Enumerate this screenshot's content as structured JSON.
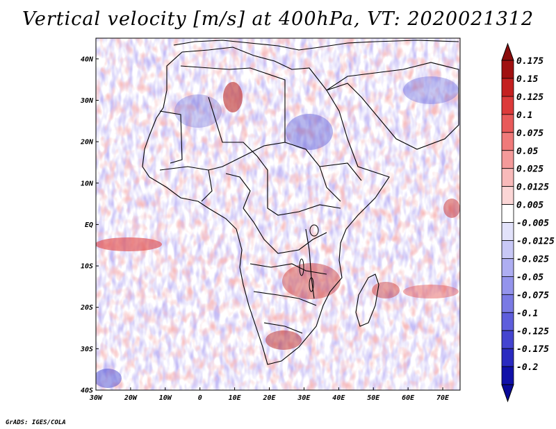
{
  "title": "Vertical velocity [m/s] at 400hPa, VT: 2020021312",
  "map": {
    "lon_range": [
      -30,
      75
    ],
    "lat_range": [
      -40,
      45
    ],
    "lat_ticks": [
      {
        "value": 40,
        "label": "40N"
      },
      {
        "value": 30,
        "label": "30N"
      },
      {
        "value": 20,
        "label": "20N"
      },
      {
        "value": 10,
        "label": "10N"
      },
      {
        "value": 0,
        "label": "EQ"
      },
      {
        "value": -10,
        "label": "10S"
      },
      {
        "value": -20,
        "label": "20S"
      },
      {
        "value": -30,
        "label": "30S"
      },
      {
        "value": -40,
        "label": "40S"
      }
    ],
    "lon_ticks": [
      {
        "value": -30,
        "label": "30W"
      },
      {
        "value": -20,
        "label": "20W"
      },
      {
        "value": -10,
        "label": "10W"
      },
      {
        "value": 0,
        "label": "0"
      },
      {
        "value": 10,
        "label": "10E"
      },
      {
        "value": 20,
        "label": "20E"
      },
      {
        "value": 30,
        "label": "30E"
      },
      {
        "value": 40,
        "label": "40E"
      },
      {
        "value": 50,
        "label": "50E"
      },
      {
        "value": 60,
        "label": "60E"
      },
      {
        "value": 70,
        "label": "70E"
      }
    ]
  },
  "colorbar": {
    "levels": [
      {
        "label": "0.175",
        "color": "#a01010"
      },
      {
        "label": "0.15",
        "color": "#c42020"
      },
      {
        "label": "0.125",
        "color": "#dc3a3a"
      },
      {
        "label": "0.1",
        "color": "#e85a5a"
      },
      {
        "label": "0.075",
        "color": "#f07a7a"
      },
      {
        "label": "0.05",
        "color": "#f49a9a"
      },
      {
        "label": "0.025",
        "color": "#f8baba"
      },
      {
        "label": "0.0125",
        "color": "#fbd6d6"
      },
      {
        "label": "0.005",
        "color": "#ffffff"
      },
      {
        "label": "-0.005",
        "color": "#e2e2fa"
      },
      {
        "label": "-0.0125",
        "color": "#c8c8f6"
      },
      {
        "label": "-0.025",
        "color": "#aeaef2"
      },
      {
        "label": "-0.05",
        "color": "#9494ec"
      },
      {
        "label": "-0.075",
        "color": "#7a7ae4"
      },
      {
        "label": "-0.1",
        "color": "#5e5edc"
      },
      {
        "label": "-0.125",
        "color": "#4444d0"
      },
      {
        "label": "-0.175",
        "color": "#2a2ac0"
      },
      {
        "label": "-0.2",
        "color": "#1010a8"
      }
    ],
    "top_color": "#8a0c0c",
    "bottom_color": "#0a0a98"
  },
  "credit": "GrADS: IGES/COLA"
}
